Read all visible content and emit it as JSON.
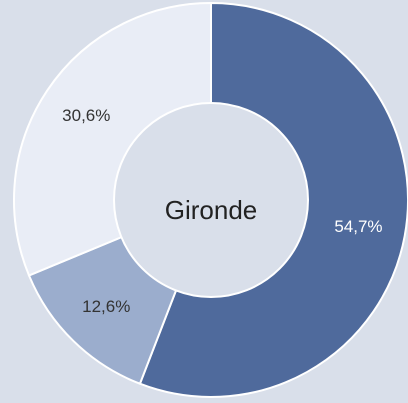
{
  "chart_data": {
    "type": "donut",
    "center_text": "Gironde",
    "values": [
      54.7,
      12.6,
      30.6
    ],
    "value_labels": [
      "54,7%",
      "12,6%",
      "30,6%"
    ],
    "colors": [
      "#4f6a9c",
      "#9badcd",
      "#e9edf6"
    ]
  }
}
